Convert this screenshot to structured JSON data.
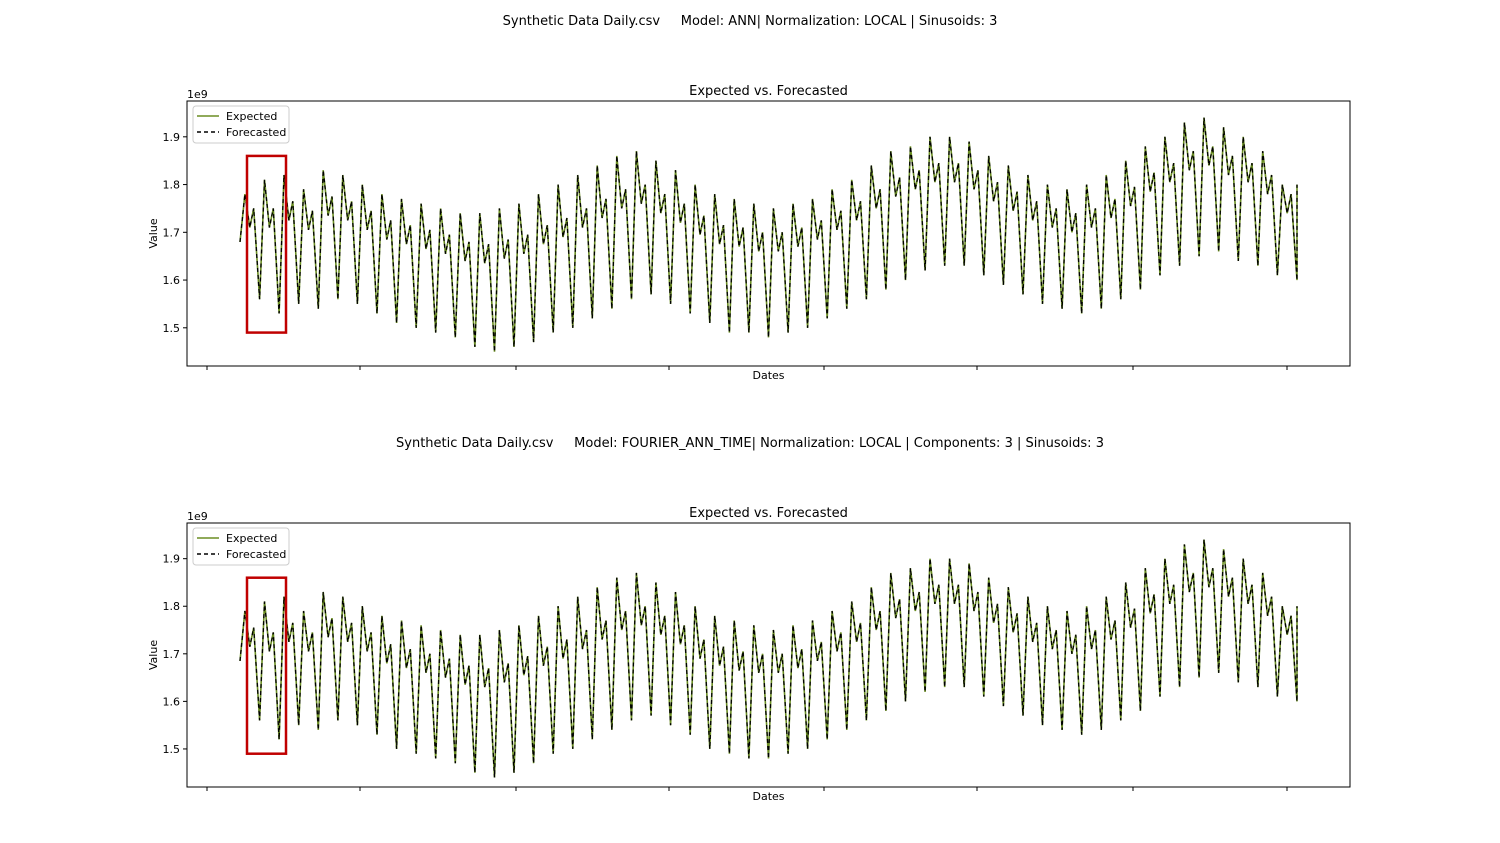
{
  "panels": [
    {
      "suptitle": "Synthetic Data Daily.csv     Model: ANN| Normalization: LOCAL | Sinusoids: 3"
    },
    {
      "suptitle": "Synthetic Data Daily.csv     Model: FOURIER_ANN_TIME| Normalization: LOCAL | Components: 3 | Sinusoids: 3"
    }
  ],
  "colors": {
    "expected": "#6b8e23",
    "forecasted": "#000000",
    "highlight": "#c00000",
    "axes": "#000000"
  },
  "chart_data": [
    {
      "type": "line",
      "title": "Expected vs. Forecasted",
      "xlabel": "Dates",
      "ylabel": "Value",
      "y_offset_label": "1e9",
      "yticks": [
        "1.5",
        "1.6",
        "1.7",
        "1.8",
        "1.9"
      ],
      "ylim": [
        1.42,
        1.975
      ],
      "legend": {
        "position": "upper-left",
        "entries": [
          "Expected",
          "Forecasted"
        ]
      },
      "grid": false,
      "series": [
        {
          "name": "Expected",
          "style": "solid",
          "peaks": [
            1.78,
            1.81,
            1.82,
            1.79,
            1.83,
            1.82,
            1.8,
            1.78,
            1.77,
            1.76,
            1.75,
            1.74,
            1.74,
            1.75,
            1.76,
            1.78,
            1.8,
            1.82,
            1.84,
            1.86,
            1.87,
            1.85,
            1.83,
            1.8,
            1.78,
            1.77,
            1.76,
            1.75,
            1.76,
            1.77,
            1.79,
            1.81,
            1.84,
            1.87,
            1.88,
            1.9,
            1.9,
            1.89,
            1.86,
            1.84,
            1.82,
            1.8,
            1.79,
            1.8,
            1.82,
            1.85,
            1.88,
            1.9,
            1.93,
            1.94,
            1.92,
            1.9,
            1.87,
            1.8
          ],
          "troughs": [
            1.56,
            1.53,
            1.55,
            1.54,
            1.56,
            1.55,
            1.53,
            1.51,
            1.5,
            1.49,
            1.48,
            1.46,
            1.45,
            1.46,
            1.47,
            1.49,
            1.5,
            1.52,
            1.54,
            1.56,
            1.57,
            1.55,
            1.53,
            1.51,
            1.49,
            1.49,
            1.48,
            1.49,
            1.5,
            1.52,
            1.54,
            1.56,
            1.58,
            1.6,
            1.62,
            1.63,
            1.63,
            1.61,
            1.59,
            1.57,
            1.55,
            1.54,
            1.53,
            1.54,
            1.56,
            1.58,
            1.61,
            1.63,
            1.65,
            1.66,
            1.64,
            1.63,
            1.61,
            1.6
          ]
        },
        {
          "name": "Forecasted",
          "style": "dashed"
        }
      ],
      "highlight_box": {
        "y_range": [
          1.49,
          1.86
        ]
      }
    },
    {
      "type": "line",
      "title": "Expected vs. Forecasted",
      "xlabel": "Dates",
      "ylabel": "Value",
      "y_offset_label": "1e9",
      "yticks": [
        "1.5",
        "1.6",
        "1.7",
        "1.8",
        "1.9"
      ],
      "ylim": [
        1.42,
        1.975
      ],
      "legend": {
        "position": "upper-left",
        "entries": [
          "Expected",
          "Forecasted"
        ]
      },
      "grid": false,
      "series": [
        {
          "name": "Expected",
          "style": "solid",
          "peaks": [
            1.79,
            1.81,
            1.82,
            1.79,
            1.83,
            1.82,
            1.8,
            1.78,
            1.77,
            1.76,
            1.75,
            1.74,
            1.74,
            1.75,
            1.76,
            1.78,
            1.8,
            1.82,
            1.84,
            1.86,
            1.87,
            1.85,
            1.83,
            1.8,
            1.78,
            1.77,
            1.76,
            1.75,
            1.76,
            1.77,
            1.79,
            1.81,
            1.84,
            1.87,
            1.88,
            1.9,
            1.9,
            1.89,
            1.86,
            1.84,
            1.82,
            1.8,
            1.79,
            1.8,
            1.82,
            1.85,
            1.88,
            1.9,
            1.93,
            1.94,
            1.92,
            1.9,
            1.87,
            1.8
          ],
          "troughs": [
            1.56,
            1.52,
            1.55,
            1.54,
            1.56,
            1.55,
            1.53,
            1.5,
            1.49,
            1.48,
            1.47,
            1.45,
            1.44,
            1.45,
            1.47,
            1.49,
            1.5,
            1.52,
            1.54,
            1.56,
            1.57,
            1.55,
            1.53,
            1.5,
            1.49,
            1.48,
            1.48,
            1.49,
            1.5,
            1.52,
            1.54,
            1.56,
            1.58,
            1.6,
            1.62,
            1.63,
            1.63,
            1.61,
            1.59,
            1.57,
            1.55,
            1.54,
            1.53,
            1.54,
            1.56,
            1.58,
            1.61,
            1.63,
            1.65,
            1.66,
            1.64,
            1.63,
            1.61,
            1.6
          ]
        },
        {
          "name": "Forecasted",
          "style": "dashed"
        }
      ],
      "highlight_box": {
        "y_range": [
          1.49,
          1.86
        ]
      }
    }
  ]
}
